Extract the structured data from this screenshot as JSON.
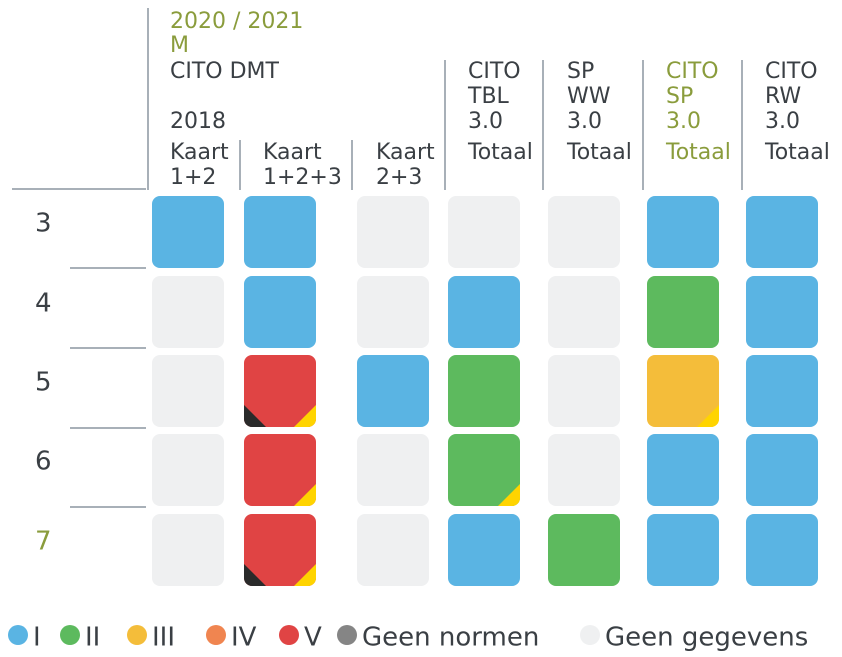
{
  "header": {
    "period": "2020 / 2021",
    "period_sub": "M",
    "group": "CITO DMT",
    "group_year": "2018"
  },
  "columns": [
    {
      "lines": [
        "Kaart",
        "1+2"
      ],
      "color": "#3a3f44"
    },
    {
      "lines": [
        "Kaart",
        "1+2+3"
      ],
      "color": "#3a3f44"
    },
    {
      "lines": [
        "Kaart",
        "2+3"
      ],
      "color": "#3a3f44"
    },
    {
      "lines": [
        "CITO",
        "TBL",
        "3.0",
        "Totaal"
      ],
      "color": "#3a3f44"
    },
    {
      "lines": [
        "SP",
        "WW",
        "3.0",
        "Totaal"
      ],
      "color": "#3a3f44"
    },
    {
      "lines": [
        "CITO",
        "SP",
        "3.0",
        "Totaal"
      ],
      "color": "#8a9c3c"
    },
    {
      "lines": [
        "CITO",
        "RW",
        "3.0",
        "Totaal"
      ],
      "color": "#3a3f44"
    }
  ],
  "rows": [
    {
      "label": "3",
      "color": "#3a3f44",
      "cells": [
        {
          "level": "I"
        },
        {
          "level": "I"
        },
        {
          "level": "Geen gegevens"
        },
        {
          "level": "Geen gegevens"
        },
        {
          "level": "Geen gegevens"
        },
        {
          "level": "I"
        },
        {
          "level": "I"
        }
      ]
    },
    {
      "label": "4",
      "color": "#3a3f44",
      "cells": [
        {
          "level": "Geen gegevens"
        },
        {
          "level": "I"
        },
        {
          "level": "Geen gegevens"
        },
        {
          "level": "I"
        },
        {
          "level": "Geen gegevens"
        },
        {
          "level": "II"
        },
        {
          "level": "I"
        }
      ]
    },
    {
      "label": "5",
      "color": "#3a3f44",
      "cells": [
        {
          "level": "Geen gegevens"
        },
        {
          "level": "V",
          "bl": "#2a2a2a",
          "br": "#ffd400"
        },
        {
          "level": "I"
        },
        {
          "level": "II"
        },
        {
          "level": "Geen gegevens"
        },
        {
          "level": "III",
          "br": "#ffd400"
        },
        {
          "level": "I"
        }
      ]
    },
    {
      "label": "6",
      "color": "#3a3f44",
      "cells": [
        {
          "level": "Geen gegevens"
        },
        {
          "level": "V",
          "br": "#ffd400"
        },
        {
          "level": "Geen gegevens"
        },
        {
          "level": "II",
          "br": "#ffd400"
        },
        {
          "level": "Geen gegevens"
        },
        {
          "level": "I"
        },
        {
          "level": "I"
        }
      ]
    },
    {
      "label": "7",
      "color": "#8a9c3c",
      "cells": [
        {
          "level": "Geen gegevens"
        },
        {
          "level": "V",
          "bl": "#2a2a2a",
          "br": "#ffd400"
        },
        {
          "level": "Geen gegevens"
        },
        {
          "level": "I"
        },
        {
          "level": "II"
        },
        {
          "level": "I"
        },
        {
          "level": "I"
        }
      ]
    }
  ],
  "legend": [
    {
      "label": "I",
      "color": "#5ab4e3"
    },
    {
      "label": "II",
      "color": "#5dba5e"
    },
    {
      "label": "III",
      "color": "#f4bd3a"
    },
    {
      "label": "IV",
      "color": "#f08550"
    },
    {
      "label": "V",
      "color": "#e04444"
    },
    {
      "label": "Geen normen",
      "color": "#858585"
    },
    {
      "label": "Geen gegevens",
      "color": "#eff0f1"
    }
  ]
}
